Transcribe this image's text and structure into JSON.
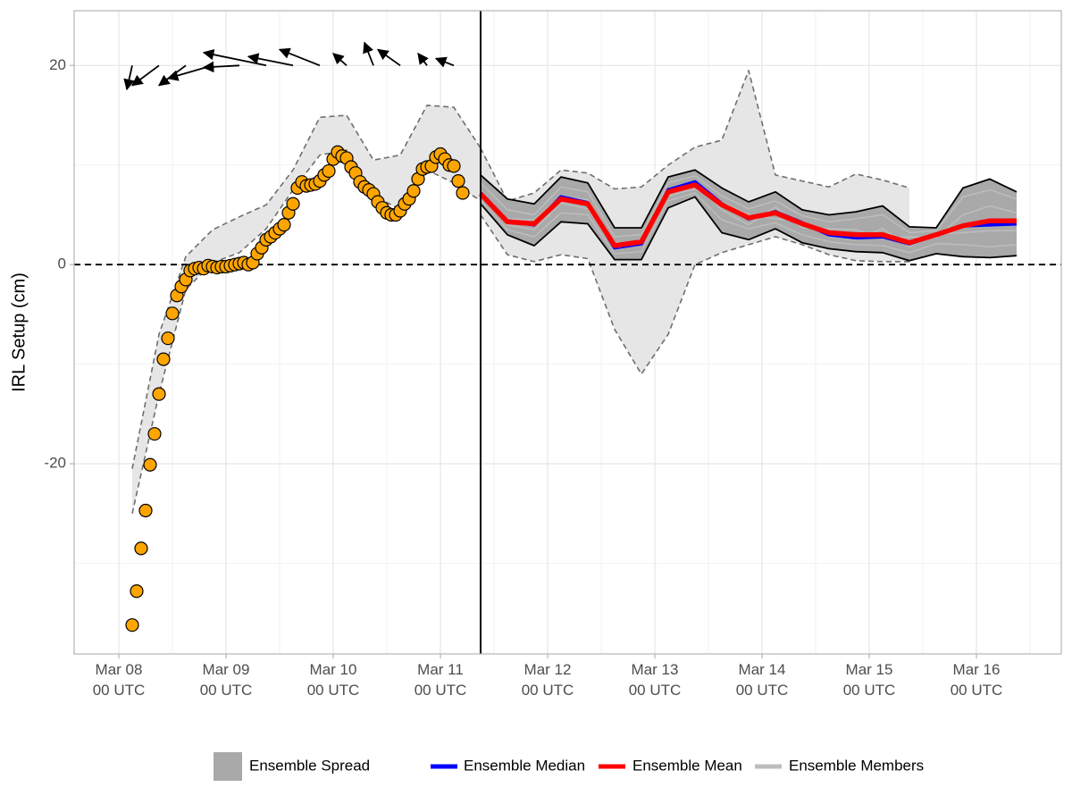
{
  "chart_data": {
    "type": "line",
    "y_label": "IRL Setup (cm)",
    "xlim": [
      "Mar 07 14 UTC",
      "Mar 16 19 UTC"
    ],
    "xticks": [
      "Mar 08\n00 UTC",
      "Mar 09\n00 UTC",
      "Mar 10\n00 UTC",
      "Mar 11\n00 UTC",
      "Mar 12\n00 UTC",
      "Mar 13\n00 UTC",
      "Mar 14\n00 UTC",
      "Mar 15\n00 UTC",
      "Mar 16\n00 UTC"
    ],
    "ylim": [
      -39.1,
      25.5
    ],
    "yticks": [
      -20,
      0,
      20
    ],
    "grid": true,
    "hline": 0,
    "forecast_start": "Mar 11 09 UTC",
    "observations": {
      "color": "#FFA500",
      "x": [
        "Mar 08 03 UTC",
        "Mar 08 04 UTC",
        "Mar 08 05 UTC",
        "Mar 08 06 UTC",
        "Mar 08 07 UTC",
        "Mar 08 08 UTC",
        "Mar 08 09 UTC",
        "Mar 08 10 UTC",
        "Mar 08 11 UTC",
        "Mar 08 12 UTC",
        "Mar 08 13 UTC",
        "Mar 08 14 UTC",
        "Mar 08 15 UTC",
        "Mar 08 16 UTC",
        "Mar 08 17 UTC",
        "Mar 08 18 UTC",
        "Mar 08 19 UTC",
        "Mar 08 20 UTC",
        "Mar 08 21 UTC",
        "Mar 08 22 UTC",
        "Mar 08 23 UTC",
        "Mar 09 00 UTC",
        "Mar 09 01 UTC",
        "Mar 09 02 UTC",
        "Mar 09 03 UTC",
        "Mar 09 04 UTC",
        "Mar 09 05 UTC",
        "Mar 09 06 UTC",
        "Mar 09 07 UTC",
        "Mar 09 08 UTC",
        "Mar 09 09 UTC",
        "Mar 09 10 UTC",
        "Mar 09 11 UTC",
        "Mar 09 12 UTC",
        "Mar 09 13 UTC",
        "Mar 09 14 UTC",
        "Mar 09 15 UTC",
        "Mar 09 16 UTC",
        "Mar 09 17 UTC",
        "Mar 09 18 UTC",
        "Mar 09 19 UTC",
        "Mar 09 20 UTC",
        "Mar 09 21 UTC",
        "Mar 09 22 UTC",
        "Mar 09 23 UTC",
        "Mar 10 00 UTC",
        "Mar 10 01 UTC",
        "Mar 10 02 UTC",
        "Mar 10 03 UTC",
        "Mar 10 04 UTC",
        "Mar 10 05 UTC",
        "Mar 10 06 UTC",
        "Mar 10 07 UTC",
        "Mar 10 08 UTC",
        "Mar 10 09 UTC",
        "Mar 10 10 UTC",
        "Mar 10 11 UTC",
        "Mar 10 12 UTC",
        "Mar 10 13 UTC",
        "Mar 10 14 UTC",
        "Mar 10 15 UTC",
        "Mar 10 16 UTC",
        "Mar 10 17 UTC",
        "Mar 10 18 UTC",
        "Mar 10 19 UTC",
        "Mar 10 20 UTC",
        "Mar 10 21 UTC",
        "Mar 10 22 UTC",
        "Mar 10 23 UTC",
        "Mar 11 00 UTC",
        "Mar 11 01 UTC",
        "Mar 11 02 UTC",
        "Mar 11 03 UTC",
        "Mar 11 04 UTC",
        "Mar 11 05 UTC"
      ],
      "values": [
        -36.2,
        -32.8,
        -28.5,
        -24.7,
        -20.1,
        -17.0,
        -13.0,
        -9.5,
        -7.4,
        -4.9,
        -3.1,
        -2.2,
        -1.5,
        -0.6,
        -0.4,
        -0.3,
        -0.4,
        -0.1,
        -0.2,
        -0.3,
        -0.2,
        -0.2,
        -0.1,
        0,
        0.1,
        0.2,
        0,
        0.2,
        1.1,
        1.7,
        2.5,
        2.8,
        3.2,
        3.6,
        4.0,
        5.2,
        6.1,
        7.7,
        8.3,
        7.9,
        8.0,
        8.1,
        8.4,
        9.0,
        9.4,
        10.6,
        11.3,
        10.9,
        10.7,
        9.8,
        9.2,
        8.3,
        7.8,
        7.5,
        7.1,
        6.3,
        5.7,
        5.2,
        5.0,
        5.0,
        5.4,
        6.1,
        6.6,
        7.4,
        8.6,
        9.6,
        9.8,
        9.9,
        10.8,
        11.1,
        10.6,
        10.0,
        9.9,
        8.4,
        7.2
      ]
    },
    "history_band": {
      "color": "#e3e3e3",
      "x": [
        "Mar 08 03 UTC",
        "Mar 08 09 UTC",
        "Mar 08 15 UTC",
        "Mar 08 21 UTC",
        "Mar 09 03 UTC",
        "Mar 09 09 UTC",
        "Mar 09 15 UTC",
        "Mar 09 21 UTC",
        "Mar 10 03 UTC",
        "Mar 10 09 UTC",
        "Mar 10 15 UTC",
        "Mar 10 21 UTC",
        "Mar 11 03 UTC",
        "Mar 11 09 UTC"
      ],
      "upper": [
        -20.5,
        -7.0,
        0.8,
        3.5,
        4.8,
        6.0,
        9.5,
        14.8,
        15.0,
        10.5,
        11.0,
        16.0,
        15.8,
        11.7
      ],
      "lower": [
        -25.0,
        -13.0,
        -2.5,
        0.2,
        1.2,
        3.6,
        7.5,
        11.0,
        11.5,
        7.0,
        5.5,
        9.5,
        8.2,
        6.4
      ]
    },
    "wind": {
      "y": 20,
      "x": [
        "Mar 08 03 UTC",
        "Mar 08 09 UTC",
        "Mar 08 15 UTC",
        "Mar 08 21 UTC",
        "Mar 09 03 UTC",
        "Mar 09 09 UTC",
        "Mar 09 15 UTC",
        "Mar 09 21 UTC",
        "Mar 10 03 UTC",
        "Mar 10 09 UTC",
        "Mar 10 15 UTC",
        "Mar 10 21 UTC",
        "Mar 11 03 UTC"
      ],
      "u": [
        -1.2,
        -6,
        -6,
        -10,
        -8,
        -14,
        -10,
        -9,
        -3,
        -2,
        -5,
        -2,
        -4
      ],
      "v": [
        -2.4,
        -2.0,
        -2.0,
        -1.3,
        -0.2,
        1.3,
        0.9,
        1.6,
        1.2,
        2.3,
        1.6,
        1.2,
        0.7
      ]
    },
    "forecast": {
      "x": [
        "Mar 11 09 UTC",
        "Mar 11 15 UTC",
        "Mar 11 21 UTC",
        "Mar 12 03 UTC",
        "Mar 12 09 UTC",
        "Mar 12 15 UTC",
        "Mar 12 21 UTC",
        "Mar 13 03 UTC",
        "Mar 13 09 UTC",
        "Mar 13 15 UTC",
        "Mar 13 21 UTC",
        "Mar 14 03 UTC",
        "Mar 14 09 UTC",
        "Mar 14 15 UTC",
        "Mar 14 21 UTC",
        "Mar 15 03 UTC",
        "Mar 15 09 UTC",
        "Mar 15 15 UTC",
        "Mar 15 21 UTC",
        "Mar 16 03 UTC",
        "Mar 16 09 UTC"
      ],
      "envelope": {
        "color": "#e3e3e3",
        "upper": [
          11.7,
          6.4,
          7.2,
          9.5,
          9.2,
          7.6,
          7.8,
          10.0,
          11.8,
          12.5,
          19.5,
          9.0,
          8.4,
          7.8,
          9.1,
          8.5,
          7.7,
          null,
          null,
          null,
          null
        ],
        "lower": [
          5.0,
          1.0,
          0.3,
          1.0,
          0.6,
          -6.5,
          -11.0,
          -7.0,
          0.0,
          1.2,
          2.0,
          2.8,
          2.0,
          1.0,
          0.4,
          0.3,
          0.3,
          null,
          null,
          null,
          null
        ]
      },
      "spread": {
        "name": "Ensemble Spread",
        "color": "#a9a9a9",
        "upper": [
          9.0,
          6.6,
          6.1,
          8.8,
          8.2,
          3.7,
          3.7,
          8.8,
          9.5,
          7.7,
          6.3,
          7.3,
          5.5,
          5.0,
          5.3,
          5.9,
          3.8,
          3.7,
          7.7,
          8.6,
          7.3
        ],
        "lower": [
          6.1,
          3.0,
          1.9,
          4.3,
          4.1,
          0.5,
          0.5,
          5.7,
          6.8,
          3.2,
          2.5,
          3.6,
          2.2,
          1.6,
          1.3,
          1.2,
          0.4,
          1.1,
          0.8,
          0.7,
          0.9
        ]
      },
      "members": {
        "name": "Ensemble Members",
        "color": "#bdbdbd",
        "values": [
          [
            8.2,
            5.5,
            5.0,
            7.8,
            7.3,
            2.8,
            3.0,
            8.2,
            8.9,
            6.9,
            5.6,
            6.4,
            4.9,
            4.3,
            4.6,
            5.0,
            3.2,
            3.4,
            6.8,
            7.5,
            6.6
          ],
          [
            6.5,
            3.5,
            2.8,
            5.2,
            5.0,
            1.1,
            1.3,
            6.4,
            7.2,
            4.5,
            3.6,
            4.2,
            3.0,
            2.3,
            2.0,
            1.9,
            1.2,
            2.1,
            2.0,
            1.8,
            2.0
          ],
          [
            7.4,
            4.6,
            4.5,
            6.9,
            6.5,
            2.2,
            2.0,
            7.6,
            8.3,
            5.5,
            4.0,
            5.8,
            3.7,
            3.6,
            3.5,
            2.6,
            2.8,
            2.7,
            5.0,
            5.9,
            5.2
          ],
          [
            6.9,
            4.0,
            3.5,
            6.2,
            5.6,
            1.6,
            2.6,
            6.9,
            7.6,
            6.3,
            5.0,
            4.6,
            4.4,
            2.8,
            2.5,
            3.6,
            1.8,
            3.1,
            3.2,
            3.4,
            3.4
          ]
        ]
      },
      "series": [
        {
          "name": "Ensemble Median",
          "color": "#0000ff",
          "values": [
            7.2,
            4.4,
            4.0,
            6.8,
            6.2,
            1.7,
            2.1,
            7.5,
            8.3,
            6.1,
            4.6,
            5.3,
            4.2,
            3.0,
            2.7,
            2.8,
            2.1,
            3.0,
            3.9,
            4.0,
            4.1
          ]
        },
        {
          "name": "Ensemble Mean",
          "color": "#ff0000",
          "values": [
            7.1,
            4.3,
            4.1,
            6.6,
            6.1,
            1.9,
            2.3,
            7.3,
            8.0,
            6.0,
            4.7,
            5.2,
            4.1,
            3.2,
            3.0,
            3.0,
            2.2,
            3.0,
            3.9,
            4.4,
            4.4
          ]
        }
      ]
    }
  }
}
